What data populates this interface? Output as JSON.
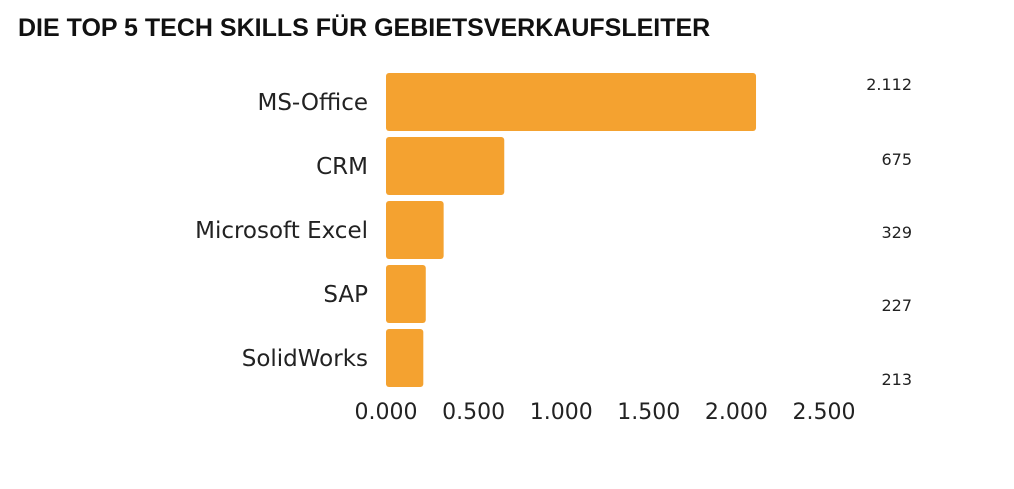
{
  "chart_data": {
    "type": "bar",
    "orientation": "horizontal",
    "title": "DIE TOP 5 TECH SKILLS FÜR GEBIETSVERKAUFSLEITER",
    "xlabel": "",
    "ylabel": "",
    "categories": [
      "MS-Office",
      "CRM",
      "Microsoft Excel",
      "SAP",
      "SolidWorks"
    ],
    "values": [
      2112,
      675,
      329,
      227,
      213
    ],
    "value_labels": [
      "2.112",
      "675",
      "329",
      "227",
      "213"
    ],
    "x_ticks": [
      0,
      500,
      1000,
      1500,
      2000,
      2500
    ],
    "x_tick_labels": [
      "0.000",
      "0.500",
      "1.000",
      "1.500",
      "2.000",
      "2.500"
    ],
    "xlim": [
      0,
      2500
    ],
    "grid": false,
    "legend": "none",
    "bar_color": "#F4A230"
  }
}
